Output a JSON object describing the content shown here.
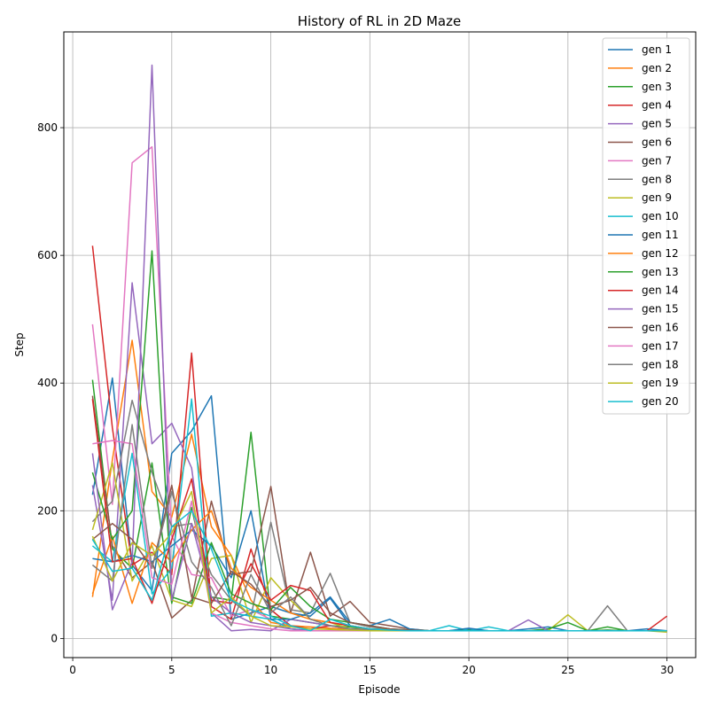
{
  "chart_data": {
    "type": "line",
    "title": "History of RL in 2D Maze",
    "xlabel": "Episode",
    "ylabel": "Step",
    "xlim": [
      -0.45,
      31.45
    ],
    "ylim": [
      -30,
      950
    ],
    "xticks": [
      0,
      5,
      10,
      15,
      20,
      25,
      30
    ],
    "yticks": [
      0,
      200,
      400,
      600,
      800
    ],
    "grid": true,
    "legend_position": "top-right",
    "x": [
      1,
      2,
      3,
      4,
      5,
      6,
      7,
      8,
      9,
      10,
      11,
      12,
      13,
      14,
      15,
      16,
      17,
      18,
      19,
      20,
      21,
      22,
      23,
      24,
      25,
      26,
      27,
      28,
      29,
      30
    ],
    "series": [
      {
        "name": "gen 1",
        "color": "#1f77b4",
        "values": [
          225,
          408,
          115,
          75,
          290,
          325,
          380,
          30,
          40,
          50,
          40,
          35,
          63,
          20,
          15,
          14,
          13,
          12,
          12,
          14,
          12,
          12,
          12,
          12,
          12,
          12,
          13,
          12,
          12,
          12
        ]
      },
      {
        "name": "gen 2",
        "color": "#ff7f0e",
        "values": [
          65,
          280,
          467,
          230,
          190,
          320,
          175,
          130,
          60,
          25,
          20,
          18,
          16,
          15,
          14,
          13,
          12,
          12,
          12,
          12,
          12,
          12,
          12,
          12,
          12,
          12,
          12,
          12,
          12,
          12
        ]
      },
      {
        "name": "gen 3",
        "color": "#2ca02c",
        "values": [
          405,
          140,
          110,
          275,
          55,
          205,
          65,
          60,
          323,
          35,
          30,
          25,
          20,
          18,
          14,
          14,
          13,
          12,
          12,
          13,
          12,
          12,
          12,
          12,
          12,
          12,
          13,
          12,
          12,
          12
        ]
      },
      {
        "name": "gen 4",
        "color": "#d62728",
        "values": [
          615,
          330,
          115,
          135,
          100,
          447,
          50,
          30,
          140,
          45,
          20,
          15,
          20,
          15,
          14,
          13,
          12,
          12,
          12,
          12,
          12,
          12,
          12,
          12,
          12,
          12,
          12,
          12,
          12,
          12
        ]
      },
      {
        "name": "gen 5",
        "color": "#9467bd",
        "values": [
          240,
          60,
          557,
          305,
          337,
          267,
          40,
          12,
          14,
          12,
          30,
          25,
          20,
          15,
          14,
          13,
          12,
          12,
          12,
          12,
          12,
          12,
          12,
          12,
          12,
          12,
          12,
          12,
          12,
          12
        ]
      },
      {
        "name": "gen 6",
        "color": "#8c564b",
        "values": [
          380,
          145,
          95,
          120,
          32,
          60,
          215,
          100,
          105,
          238,
          40,
          135,
          35,
          58,
          25,
          20,
          15,
          12,
          12,
          12,
          12,
          12,
          12,
          12,
          12,
          12,
          12,
          12,
          12,
          12
        ]
      },
      {
        "name": "gen 7",
        "color": "#e377c2",
        "values": [
          492,
          210,
          745,
          770,
          160,
          100,
          95,
          35,
          45,
          30,
          15,
          12,
          12,
          12,
          12,
          12,
          12,
          12,
          12,
          12,
          12,
          12,
          12,
          12,
          12,
          12,
          12,
          12,
          12,
          12
        ]
      },
      {
        "name": "gen 8",
        "color": "#7f7f7f",
        "values": [
          183,
          215,
          373,
          260,
          175,
          180,
          100,
          60,
          35,
          182,
          45,
          40,
          102,
          25,
          18,
          15,
          13,
          12,
          12,
          12,
          12,
          12,
          12,
          12,
          12,
          12,
          51,
          12,
          12,
          12
        ]
      },
      {
        "name": "gen 9",
        "color": "#bcbd22",
        "values": [
          170,
          275,
          90,
          145,
          60,
          50,
          125,
          130,
          25,
          95,
          60,
          30,
          25,
          15,
          15,
          13,
          12,
          12,
          12,
          12,
          12,
          12,
          12,
          12,
          37,
          12,
          12,
          12,
          12,
          10
        ]
      },
      {
        "name": "gen 10",
        "color": "#17becf",
        "values": [
          145,
          120,
          290,
          70,
          110,
          375,
          35,
          40,
          35,
          30,
          15,
          12,
          12,
          12,
          12,
          12,
          12,
          12,
          20,
          12,
          18,
          12,
          12,
          12,
          12,
          12,
          12,
          12,
          12,
          12
        ]
      },
      {
        "name": "gen 11",
        "color": "#1f77b4",
        "values": [
          125,
          120,
          130,
          120,
          145,
          170,
          145,
          95,
          200,
          30,
          30,
          40,
          65,
          25,
          20,
          30,
          15,
          12,
          12,
          16,
          12,
          12,
          15,
          18,
          12,
          12,
          12,
          12,
          15,
          12
        ]
      },
      {
        "name": "gen 12",
        "color": "#ff7f0e",
        "values": [
          70,
          160,
          55,
          150,
          120,
          170,
          200,
          110,
          80,
          60,
          40,
          30,
          25,
          20,
          15,
          13,
          12,
          12,
          12,
          12,
          12,
          12,
          12,
          12,
          12,
          12,
          12,
          12,
          12,
          12
        ]
      },
      {
        "name": "gen 13",
        "color": "#2ca02c",
        "values": [
          260,
          155,
          200,
          607,
          65,
          55,
          150,
          70,
          55,
          45,
          80,
          50,
          30,
          25,
          20,
          15,
          13,
          12,
          12,
          12,
          12,
          12,
          12,
          15,
          25,
          12,
          18,
          12,
          12,
          12
        ]
      },
      {
        "name": "gen 14",
        "color": "#d62728",
        "values": [
          375,
          120,
          125,
          55,
          155,
          250,
          60,
          55,
          117,
          60,
          83,
          75,
          25,
          20,
          15,
          12,
          12,
          12,
          12,
          12,
          12,
          12,
          12,
          12,
          12,
          12,
          12,
          12,
          12,
          35
        ]
      },
      {
        "name": "gen 15",
        "color": "#9467bd",
        "values": [
          290,
          45,
          120,
          898,
          60,
          180,
          65,
          40,
          25,
          20,
          15,
          12,
          12,
          12,
          12,
          12,
          12,
          12,
          12,
          12,
          12,
          12,
          29,
          12,
          12,
          12,
          12,
          12,
          12,
          12
        ]
      },
      {
        "name": "gen 16",
        "color": "#8c564b",
        "values": [
          155,
          180,
          155,
          110,
          240,
          65,
          55,
          105,
          85,
          50,
          60,
          80,
          40,
          25,
          20,
          15,
          13,
          12,
          12,
          12,
          12,
          12,
          12,
          12,
          12,
          12,
          12,
          12,
          12,
          12
        ]
      },
      {
        "name": "gen 17",
        "color": "#e377c2",
        "values": [
          305,
          310,
          305,
          95,
          85,
          215,
          40,
          25,
          20,
          15,
          12,
          12,
          12,
          12,
          12,
          12,
          12,
          12,
          12,
          12,
          12,
          12,
          12,
          12,
          12,
          12,
          12,
          12,
          12,
          12
        ]
      },
      {
        "name": "gen 18",
        "color": "#7f7f7f",
        "values": [
          115,
          90,
          335,
          110,
          230,
          120,
          80,
          20,
          100,
          40,
          65,
          30,
          20,
          15,
          14,
          13,
          12,
          12,
          12,
          12,
          12,
          12,
          12,
          12,
          12,
          12,
          12,
          12,
          12,
          12
        ]
      },
      {
        "name": "gen 19",
        "color": "#bcbd22",
        "values": [
          160,
          90,
          150,
          130,
          165,
          230,
          40,
          65,
          35,
          20,
          18,
          15,
          14,
          13,
          12,
          12,
          12,
          12,
          12,
          12,
          12,
          12,
          12,
          12,
          12,
          12,
          12,
          12,
          12,
          12
        ]
      },
      {
        "name": "gen 20",
        "color": "#17becf",
        "values": [
          155,
          105,
          110,
          60,
          175,
          200,
          140,
          60,
          45,
          35,
          20,
          12,
          30,
          20,
          15,
          13,
          12,
          12,
          12,
          12,
          12,
          12,
          12,
          12,
          12,
          12,
          12,
          12,
          12,
          12
        ]
      }
    ]
  }
}
